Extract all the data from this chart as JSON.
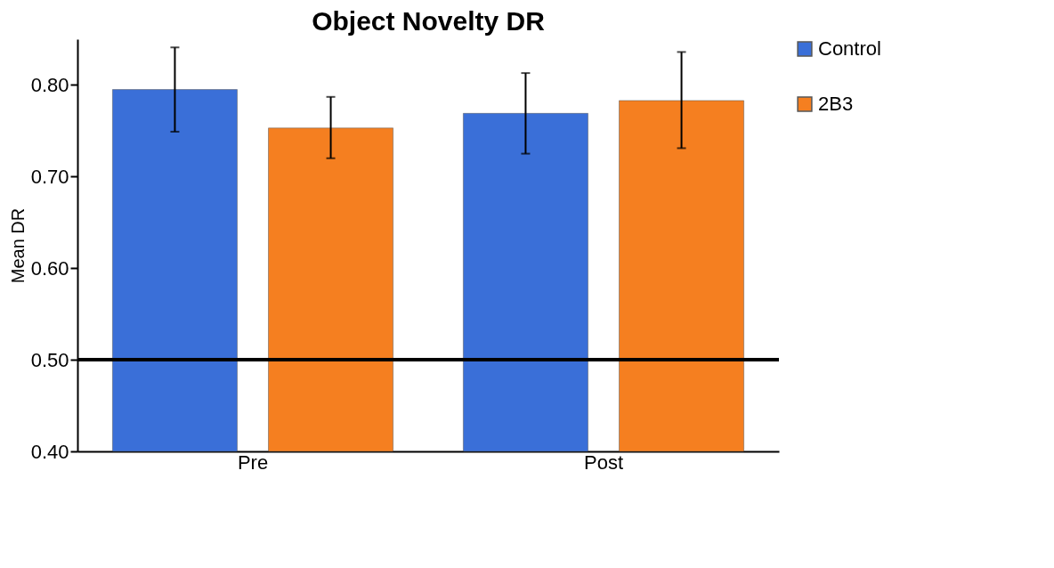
{
  "chart_data": {
    "type": "bar",
    "title": "Object Novelty  DR",
    "ylabel": "Mean DR",
    "categories": [
      "Pre",
      "Post"
    ],
    "series": [
      {
        "name": "Control",
        "color": "#3a6fd8",
        "values": [
          0.795,
          0.769
        ],
        "errors": [
          [
            0.749,
            0.841
          ],
          [
            0.725,
            0.813
          ]
        ]
      },
      {
        "name": "2B3",
        "color": "#f57f20",
        "values": [
          0.753,
          0.783
        ],
        "errors": [
          [
            0.72,
            0.787
          ],
          [
            0.731,
            0.836
          ]
        ]
      }
    ],
    "ylim": [
      0.4,
      0.85
    ],
    "yticks": [
      {
        "value": 0.4,
        "label": "0.40"
      },
      {
        "value": 0.5,
        "label": "0.50"
      },
      {
        "value": 0.6,
        "label": "0.60"
      },
      {
        "value": 0.7,
        "label": "0.70"
      },
      {
        "value": 0.8,
        "label": "0.80"
      }
    ],
    "ref_lines": [
      {
        "axis": "y",
        "value": 0.5,
        "color": "#000000"
      }
    ],
    "legend": "right",
    "grid": false
  }
}
